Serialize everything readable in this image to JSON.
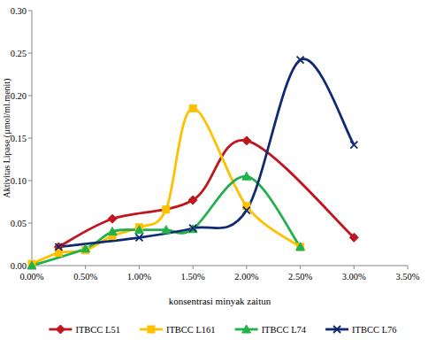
{
  "chart_data": {
    "type": "line",
    "x_label": "konsentrasi minyak zaitun",
    "y_label": "Aktivitas Lipase (µmol/ml.menit)",
    "xlim": [
      0,
      3.5
    ],
    "ylim": [
      0,
      0.3
    ],
    "xticks": [
      {
        "value": 0,
        "label": "0.00%"
      },
      {
        "value": 0.5,
        "label": "0.50%"
      },
      {
        "value": 1,
        "label": "1.00%"
      },
      {
        "value": 1.5,
        "label": "1.50%"
      },
      {
        "value": 2,
        "label": "2.00%"
      },
      {
        "value": 2.5,
        "label": "2.50%"
      },
      {
        "value": 3,
        "label": "3.00%"
      },
      {
        "value": 3.5,
        "label": "3.50%"
      }
    ],
    "yticks": [
      {
        "value": 0,
        "label": "0.00"
      },
      0.05,
      {
        "value": 0.1,
        "label": "0.10"
      },
      0.15,
      {
        "value": 0.2,
        "label": "0.20"
      },
      0.25,
      {
        "value": 0.3,
        "label": "0.30"
      }
    ],
    "legend": "bottom",
    "series": [
      {
        "name": "ITBCC L51",
        "color": "#C0161E",
        "marker": "diamond",
        "x": [
          0.25,
          0.75,
          1.5,
          2.0,
          3.0
        ],
        "values": [
          0.022,
          0.055,
          0.077,
          0.147,
          0.033
        ]
      },
      {
        "name": "ITBCC L161",
        "color": "#FFC000",
        "marker": "square",
        "x": [
          0,
          0.25,
          0.5,
          0.75,
          1.0,
          1.25,
          1.5,
          2.0,
          2.5
        ],
        "values": [
          0.002,
          0.015,
          0.018,
          0.035,
          0.045,
          0.066,
          0.185,
          0.07,
          0.022
        ]
      },
      {
        "name": "ITBCC L74",
        "color": "#22B14C",
        "marker": "triangle",
        "x": [
          0,
          0.5,
          0.75,
          1.0,
          1.25,
          1.5,
          2.0,
          2.5
        ],
        "values": [
          0.0,
          0.02,
          0.04,
          0.042,
          0.042,
          0.043,
          0.105,
          0.022
        ]
      },
      {
        "name": "ITBCC L76",
        "color": "#0F2A70",
        "marker": "x",
        "x": [
          0.25,
          1.0,
          1.5,
          2.0,
          2.5,
          3.0
        ],
        "values": [
          0.022,
          0.033,
          0.044,
          0.065,
          0.242,
          0.142
        ]
      }
    ]
  }
}
